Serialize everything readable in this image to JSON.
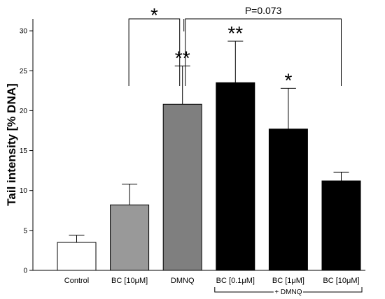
{
  "chart_data": {
    "type": "bar",
    "title": "",
    "ylabel": "Tail intensity [% DNA]",
    "xlabel": "",
    "ylim": [
      0,
      31
    ],
    "yticks": [
      0,
      5,
      10,
      15,
      20,
      25,
      30
    ],
    "categories": [
      "Control",
      "BC [10μM]",
      "DMNQ",
      "BC [0.1μM]",
      "BC [1μM]",
      "BC [10μM]"
    ],
    "values": [
      3.5,
      8.2,
      20.8,
      23.5,
      17.7,
      11.2
    ],
    "errors": [
      0.9,
      2.6,
      4.8,
      5.2,
      5.1,
      1.1
    ],
    "bar_colors": [
      "#ffffff",
      "#999999",
      "#7f7f7f",
      "#000000",
      "#000000",
      "#000000"
    ],
    "group_label": "+ DMNQ",
    "group_indices": [
      3,
      4,
      5
    ],
    "bar_annotations": [
      {
        "index": 2,
        "text": "**"
      },
      {
        "index": 3,
        "text": "**"
      },
      {
        "index": 4,
        "text": "*"
      }
    ],
    "comparisons": [
      {
        "from": 1,
        "to": 2,
        "text": "*"
      },
      {
        "from": 2,
        "to": 5,
        "text": "P=0.073"
      }
    ]
  }
}
